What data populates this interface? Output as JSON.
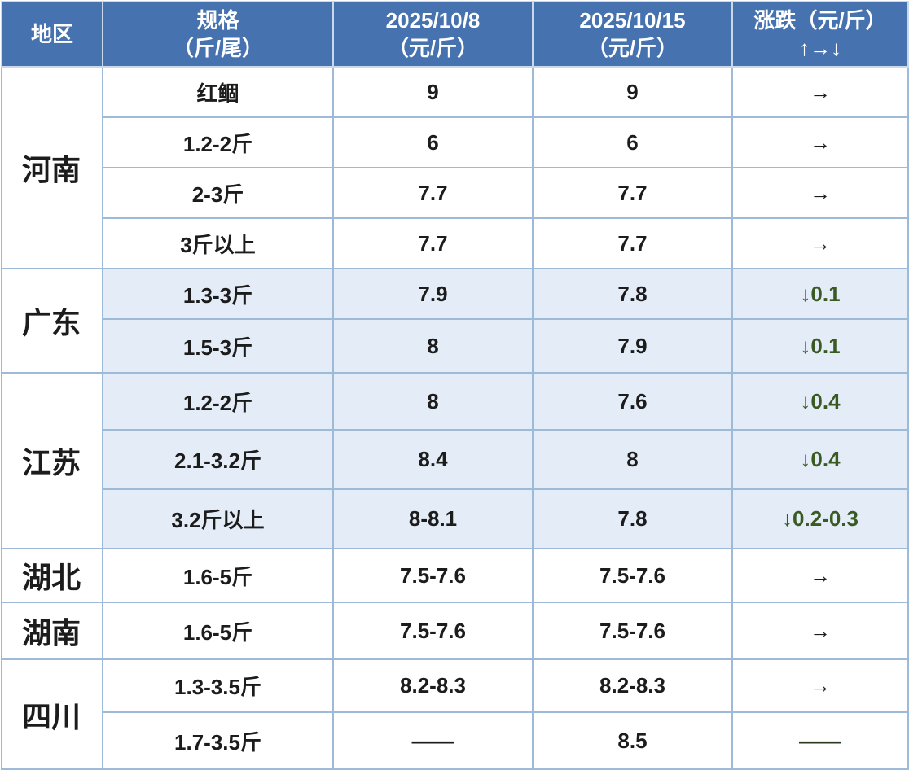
{
  "header": {
    "region": "地区",
    "spec_line1": "规格",
    "spec_line2": "（斤/尾）",
    "date1_line1": "2025/10/8",
    "date1_line2": "（元/斤）",
    "date2_line1": "2025/10/15",
    "date2_line2": "（元/斤）",
    "change_line1": "涨跌（元/斤）",
    "change_line2": "↑→↓"
  },
  "groups": [
    {
      "region": "河南",
      "rows": [
        {
          "spec": "红鲴",
          "p1": "9",
          "p2": "9",
          "change": "→"
        },
        {
          "spec": "1.2-2斤",
          "p1": "6",
          "p2": "6",
          "change": "→"
        },
        {
          "spec": "2-3斤",
          "p1": "7.7",
          "p2": "7.7",
          "change": "→"
        },
        {
          "spec": "3斤以上",
          "p1": "7.7",
          "p2": "7.7",
          "change": "→"
        }
      ]
    },
    {
      "region": "广东",
      "rows": [
        {
          "spec": "1.3-3斤",
          "p1": "7.9",
          "p2": "7.8",
          "change": "↓0.1"
        },
        {
          "spec": "1.5-3斤",
          "p1": "8",
          "p2": "7.9",
          "change": "↓0.1"
        }
      ]
    },
    {
      "region": "江苏",
      "rows": [
        {
          "spec": "1.2-2斤",
          "p1": "8",
          "p2": "7.6",
          "change": "↓0.4"
        },
        {
          "spec": "2.1-3.2斤",
          "p1": "8.4",
          "p2": "8",
          "change": "↓0.4"
        },
        {
          "spec": "3.2斤以上",
          "p1": "8-8.1",
          "p2": "7.8",
          "change": "↓0.2-0.3"
        }
      ]
    },
    {
      "region": "湖北",
      "rows": [
        {
          "spec": "1.6-5斤",
          "p1": "7.5-7.6",
          "p2": "7.5-7.6",
          "change": "→"
        }
      ]
    },
    {
      "region": "湖南",
      "rows": [
        {
          "spec": "1.6-5斤",
          "p1": "7.5-7.6",
          "p2": "7.5-7.6",
          "change": "→"
        }
      ]
    },
    {
      "region": "四川",
      "rows": [
        {
          "spec": "1.3-3.5斤",
          "p1": "8.2-8.3",
          "p2": "8.2-8.3",
          "change": "→"
        },
        {
          "spec": "1.7-3.5斤",
          "p1": "——",
          "p2": "8.5",
          "change": "——"
        }
      ]
    }
  ],
  "colors": {
    "header_bg": "#4673b0",
    "row_shade": "#e4edf7",
    "border": "#9dbbd6",
    "decline_text": "#3a5a24"
  }
}
